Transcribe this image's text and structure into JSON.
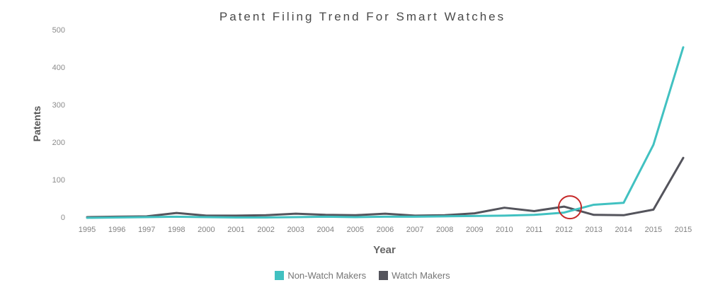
{
  "chart_data": {
    "type": "line",
    "title": "Patent Filing Trend For Smart Watches",
    "xlabel": "Year",
    "ylabel": "Patents",
    "categories": [
      "1995",
      "1996",
      "1997",
      "1998",
      "2000",
      "2001",
      "2002",
      "2003",
      "2004",
      "2005",
      "2006",
      "2007",
      "2008",
      "2009",
      "2010",
      "2011",
      "2012",
      "2013",
      "2014",
      "2015",
      "2015"
    ],
    "series": [
      {
        "name": "Non-Watch Makers",
        "color": "#41c1c1",
        "values": [
          0,
          1,
          2,
          3,
          2,
          1,
          1,
          2,
          3,
          2,
          3,
          3,
          4,
          5,
          6,
          8,
          14,
          35,
          40,
          195,
          455
        ]
      },
      {
        "name": "Watch Makers",
        "color": "#54545c",
        "values": [
          2,
          3,
          4,
          13,
          6,
          6,
          7,
          11,
          8,
          7,
          11,
          6,
          7,
          12,
          27,
          18,
          30,
          8,
          7,
          22,
          160
        ]
      }
    ],
    "yticks": [
      0,
      100,
      200,
      300,
      400,
      500
    ],
    "ylim": [
      0,
      500
    ],
    "grid": false,
    "axis_lines": false,
    "legend_position": "bottom",
    "annotation": {
      "shape": "circle",
      "color": "#c62828",
      "note": "crossover highlight between 2012 and 2013",
      "x_index": 16.2,
      "y_value": 28,
      "radius_px": 16
    }
  }
}
